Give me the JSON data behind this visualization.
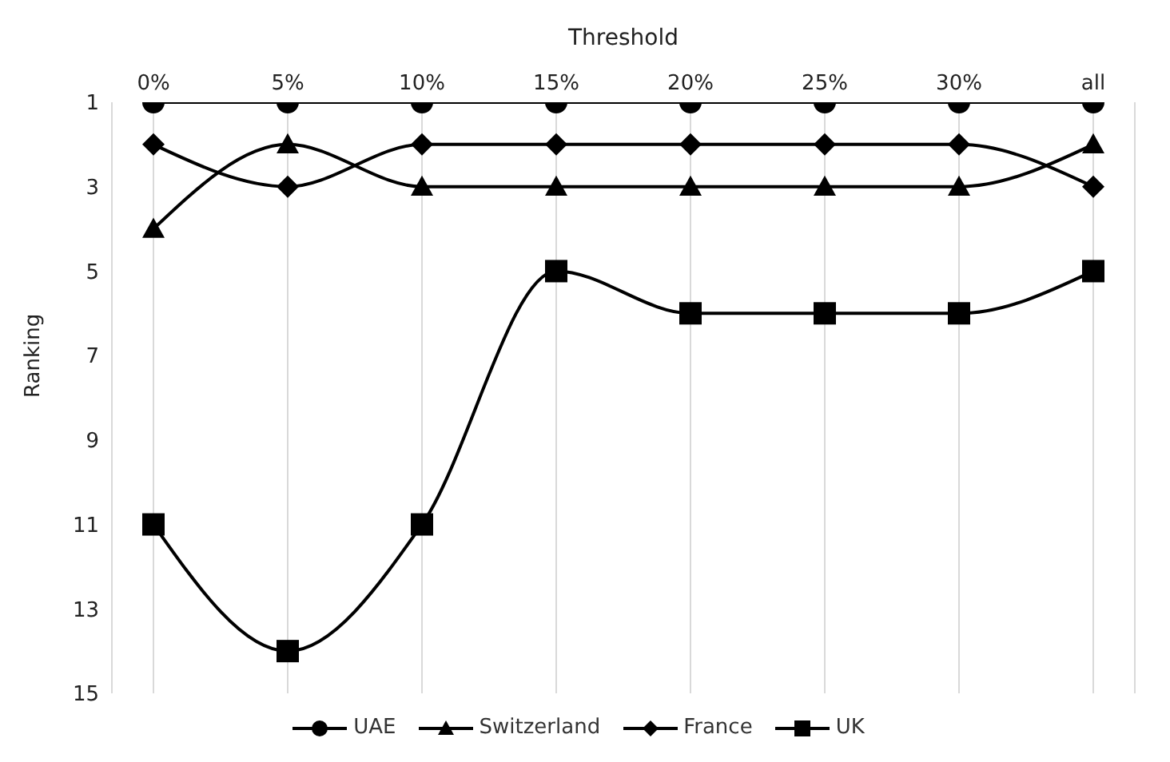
{
  "chart_data": {
    "type": "line",
    "xlabel": "Threshold",
    "ylabel": "Ranking",
    "categories": [
      "0%",
      "5%",
      "10%",
      "15%",
      "20%",
      "25%",
      "30%",
      "all"
    ],
    "series": [
      {
        "name": "UAE",
        "color": "#000000",
        "marker": "circle",
        "values": [
          1,
          1,
          1,
          1,
          1,
          1,
          1,
          1
        ]
      },
      {
        "name": "Switzerland",
        "color": "#000000",
        "marker": "triangle",
        "values": [
          4,
          2,
          3,
          3,
          3,
          3,
          3,
          2
        ]
      },
      {
        "name": "France",
        "color": "#000000",
        "marker": "diamond",
        "values": [
          2,
          3,
          2,
          2,
          2,
          2,
          2,
          3
        ]
      },
      {
        "name": "UK",
        "color": "#000000",
        "marker": "square",
        "values": [
          11,
          14,
          11,
          5,
          6,
          6,
          6,
          5
        ]
      }
    ],
    "ylim": [
      15,
      1
    ],
    "yticks": [
      1,
      3,
      5,
      7,
      9,
      11,
      13,
      15
    ],
    "grid": "x",
    "legend": "bottom",
    "line_style": "solid"
  }
}
